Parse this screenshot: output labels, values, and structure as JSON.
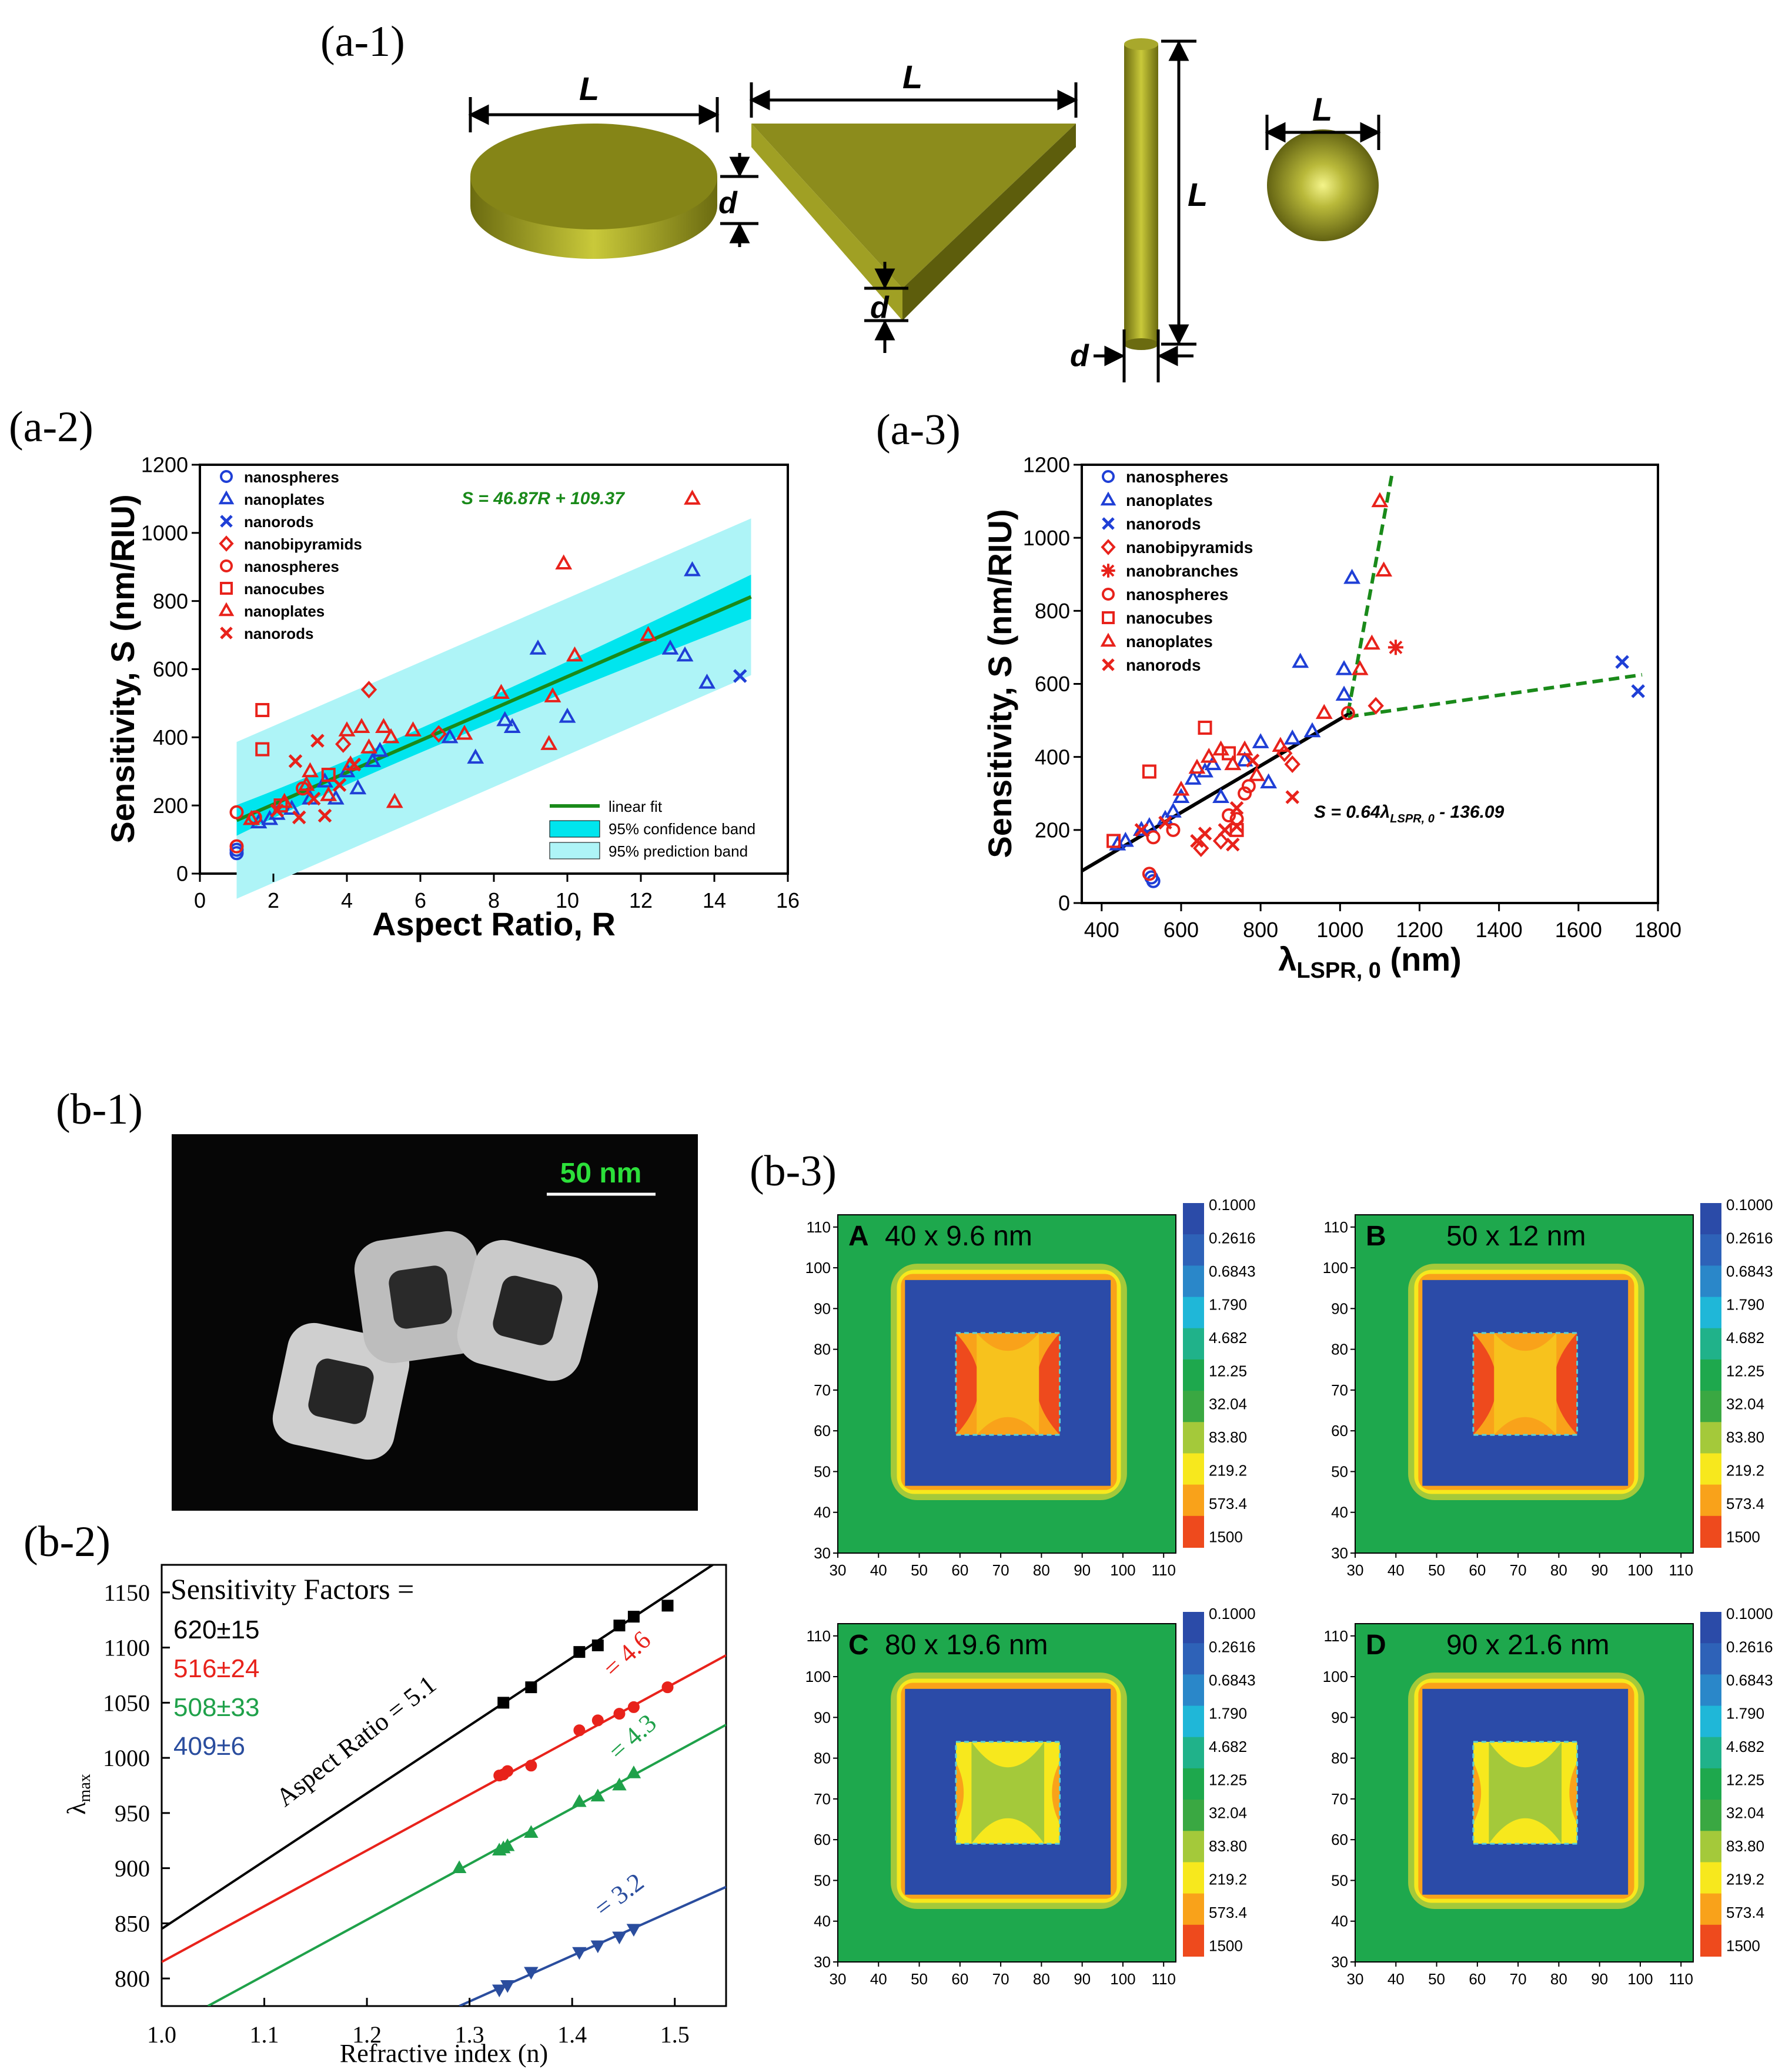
{
  "figure": {
    "panel_labels": {
      "a1": "(a-1)",
      "a2": "(a-2)",
      "a3": "(a-3)",
      "b1": "(b-1)",
      "b2": "(b-2)",
      "b3": "(b-3)"
    },
    "shapes_legend": {
      "length_label": "L",
      "thickness_label": "d"
    },
    "micrograph": {
      "scale_bar": "50 nm"
    }
  },
  "chart_data": [
    {
      "id": "a2",
      "type": "scatter",
      "xlabel": "Aspect Ratio, R",
      "ylabel": "Sensitivity, S (nm/RIU)",
      "xlim": [
        0,
        16
      ],
      "ylim": [
        0,
        1200
      ],
      "xticks": [
        "0",
        "2",
        "4",
        "6",
        "8",
        "10",
        "12",
        "14",
        "16"
      ],
      "yticks": [
        "0",
        "200",
        "400",
        "600",
        "800",
        "1000",
        "1200"
      ],
      "equation": "S = 46.87R + 109.37",
      "fit": {
        "slope": 46.87,
        "intercept": 109.37,
        "x_range": [
          1,
          15
        ]
      },
      "legend_position": "top-left",
      "band_legend": [
        "linear fit",
        "95% confidence band",
        "95% prediction band"
      ],
      "colors": {
        "blue": "#1f3fd6",
        "red": "#e8221b",
        "fit": "#1a8a1a",
        "conf": "#00e5ee",
        "pred": "#aef4f7"
      },
      "series": [
        {
          "name": "nanospheres",
          "marker": "circle",
          "color": "blue",
          "points": [
            [
              1,
              60
            ],
            [
              1,
              70
            ]
          ]
        },
        {
          "name": "nanoplates",
          "marker": "triangle",
          "color": "blue",
          "points": [
            [
              1.6,
              150
            ],
            [
              1.9,
              160
            ],
            [
              2.1,
              175
            ],
            [
              2.5,
              190
            ],
            [
              3.0,
              220
            ],
            [
              3.4,
              270
            ],
            [
              3.7,
              220
            ],
            [
              4.0,
              300
            ],
            [
              4.3,
              250
            ],
            [
              4.7,
              330
            ],
            [
              4.9,
              360
            ],
            [
              6.8,
              400
            ],
            [
              7.5,
              340
            ],
            [
              8.3,
              450
            ],
            [
              8.5,
              430
            ],
            [
              9.2,
              660
            ],
            [
              10.0,
              460
            ],
            [
              12.8,
              660
            ],
            [
              13.2,
              640
            ],
            [
              13.4,
              890
            ],
            [
              13.8,
              560
            ]
          ]
        },
        {
          "name": "nanorods",
          "marker": "x",
          "color": "blue",
          "points": [
            [
              14.7,
              580
            ]
          ]
        },
        {
          "name": "nanobipyramids",
          "marker": "diamond",
          "color": "red",
          "points": [
            [
              3.9,
              380
            ],
            [
              4.6,
              540
            ],
            [
              6.5,
              410
            ]
          ]
        },
        {
          "name": "nanospheres",
          "marker": "circle",
          "color": "red",
          "points": [
            [
              1,
              180
            ],
            [
              1,
              80
            ],
            [
              1.5,
              165
            ],
            [
              2.8,
              250
            ]
          ]
        },
        {
          "name": "nanocubes",
          "marker": "square",
          "color": "red",
          "points": [
            [
              1.7,
              480
            ],
            [
              1.7,
              365
            ],
            [
              2.2,
              200
            ],
            [
              3.5,
              290
            ]
          ]
        },
        {
          "name": "nanoplates",
          "marker": "triangle",
          "color": "red",
          "points": [
            [
              1.4,
              160
            ],
            [
              2.3,
              210
            ],
            [
              2.9,
              260
            ],
            [
              3.0,
              300
            ],
            [
              3.5,
              230
            ],
            [
              4.0,
              420
            ],
            [
              4.1,
              320
            ],
            [
              4.4,
              430
            ],
            [
              4.6,
              370
            ],
            [
              5.0,
              430
            ],
            [
              5.2,
              400
            ],
            [
              5.3,
              210
            ],
            [
              5.8,
              420
            ],
            [
              7.2,
              410
            ],
            [
              8.2,
              530
            ],
            [
              9.5,
              380
            ],
            [
              9.6,
              520
            ],
            [
              9.9,
              910
            ],
            [
              10.2,
              640
            ],
            [
              12.2,
              700
            ],
            [
              13.4,
              1100
            ]
          ]
        },
        {
          "name": "nanorods",
          "marker": "x",
          "color": "red",
          "points": [
            [
              2.1,
              185
            ],
            [
              2.6,
              330
            ],
            [
              2.7,
              165
            ],
            [
              3.1,
              220
            ],
            [
              3.2,
              390
            ],
            [
              3.4,
              170
            ],
            [
              3.8,
              260
            ],
            [
              4.2,
              320
            ]
          ]
        }
      ]
    },
    {
      "id": "a3",
      "type": "scatter",
      "xlabel": "λLSPR, 0 (nm)",
      "ylabel": "Sensitivity, S (nm/RIU)",
      "xlim": [
        350,
        1800
      ],
      "ylim": [
        0,
        1200
      ],
      "xticks": [
        "400",
        "600",
        "800",
        "1000",
        "1200",
        "1400",
        "1600",
        "1800"
      ],
      "yticks": [
        "0",
        "200",
        "400",
        "600",
        "800",
        "1000",
        "1200"
      ],
      "equation": "S = 0.64λLSPR, 0 - 136.09",
      "legend_position": "top-left",
      "fit_black": {
        "slope": 0.64,
        "intercept": -136.09,
        "x_range": [
          350,
          1030
        ]
      },
      "fit_green_1": [
        [
          1020,
          520
        ],
        [
          1130,
          1170
        ]
      ],
      "fit_green_2": [
        [
          1020,
          510
        ],
        [
          1760,
          625
        ]
      ],
      "colors": {
        "blue": "#1f3fd6",
        "red": "#e8221b",
        "black": "#000000",
        "green": "#1a8a1a"
      },
      "series": [
        {
          "name": "nanospheres",
          "marker": "circle",
          "color": "blue",
          "points": [
            [
              525,
              70
            ],
            [
              530,
              60
            ]
          ]
        },
        {
          "name": "nanoplates",
          "marker": "triangle",
          "color": "blue",
          "points": [
            [
              440,
              160
            ],
            [
              460,
              170
            ],
            [
              500,
              200
            ],
            [
              520,
              210
            ],
            [
              560,
              230
            ],
            [
              580,
              250
            ],
            [
              600,
              290
            ],
            [
              630,
              340
            ],
            [
              660,
              360
            ],
            [
              680,
              380
            ],
            [
              700,
              290
            ],
            [
              760,
              390
            ],
            [
              800,
              440
            ],
            [
              820,
              330
            ],
            [
              880,
              450
            ],
            [
              900,
              660
            ],
            [
              930,
              470
            ],
            [
              1010,
              570
            ],
            [
              1010,
              640
            ],
            [
              1030,
              890
            ]
          ]
        },
        {
          "name": "nanorods",
          "marker": "x",
          "color": "blue",
          "points": [
            [
              1710,
              660
            ],
            [
              1750,
              580
            ]
          ]
        },
        {
          "name": "nanobipyramids",
          "marker": "diamond",
          "color": "red",
          "points": [
            [
              650,
              150
            ],
            [
              700,
              170
            ],
            [
              860,
              410
            ],
            [
              880,
              380
            ],
            [
              1090,
              540
            ]
          ]
        },
        {
          "name": "nanobranches",
          "marker": "asterisk",
          "color": "red",
          "points": [
            [
              1140,
              700
            ]
          ]
        },
        {
          "name": "nanospheres",
          "marker": "circle",
          "color": "red",
          "points": [
            [
              520,
              80
            ],
            [
              530,
              180
            ],
            [
              580,
              200
            ],
            [
              720,
              240
            ],
            [
              740,
              230
            ],
            [
              760,
              300
            ],
            [
              770,
              320
            ],
            [
              1020,
              520
            ]
          ]
        },
        {
          "name": "nanocubes",
          "marker": "square",
          "color": "red",
          "points": [
            [
              430,
              170
            ],
            [
              520,
              360
            ],
            [
              660,
              480
            ],
            [
              720,
              410
            ],
            [
              740,
              200
            ]
          ]
        },
        {
          "name": "nanoplates",
          "marker": "triangle",
          "color": "red",
          "points": [
            [
              600,
              310
            ],
            [
              640,
              370
            ],
            [
              670,
              400
            ],
            [
              700,
              420
            ],
            [
              730,
              380
            ],
            [
              760,
              420
            ],
            [
              790,
              350
            ],
            [
              850,
              430
            ],
            [
              960,
              520
            ],
            [
              1050,
              640
            ],
            [
              1080,
              710
            ],
            [
              1100,
              1100
            ],
            [
              1110,
              910
            ]
          ]
        },
        {
          "name": "nanorods",
          "marker": "x",
          "color": "red",
          "points": [
            [
              500,
              200
            ],
            [
              560,
              220
            ],
            [
              640,
              170
            ],
            [
              660,
              190
            ],
            [
              710,
              200
            ],
            [
              730,
              160
            ],
            [
              740,
              260
            ],
            [
              740,
              210
            ],
            [
              780,
              390
            ],
            [
              880,
              290
            ]
          ]
        }
      ]
    },
    {
      "id": "b2",
      "type": "line",
      "xlabel": "Refractive index (n)",
      "ylabel": "λmax",
      "xlim": [
        1.0,
        1.55
      ],
      "ylim": [
        775,
        1175
      ],
      "xticks": [
        "1.0",
        "1.1",
        "1.2",
        "1.3",
        "1.4",
        "1.5"
      ],
      "yticks": [
        "800",
        "850",
        "900",
        "950",
        "1000",
        "1050",
        "1100",
        "1150"
      ],
      "title_text": "Sensitivity Factors =",
      "series": [
        {
          "name": "Aspect Ratio = 5.1",
          "factor": "620±15",
          "color": "#000000",
          "marker": "square",
          "line": [
            [
              1.0,
              845
            ],
            [
              1.55,
              1183
            ]
          ],
          "points": [
            [
              1.333,
              1050
            ],
            [
              1.36,
              1064
            ],
            [
              1.407,
              1096
            ],
            [
              1.425,
              1102
            ],
            [
              1.446,
              1120
            ],
            [
              1.46,
              1128
            ],
            [
              1.493,
              1138
            ]
          ]
        },
        {
          "name": "= 4.6",
          "factor": "516±24",
          "color": "#e8221b",
          "marker": "circle",
          "line": [
            [
              1.0,
              815
            ],
            [
              1.55,
              1093
            ]
          ],
          "points": [
            [
              1.329,
              984
            ],
            [
              1.333,
              985
            ],
            [
              1.337,
              988
            ],
            [
              1.36,
              993
            ],
            [
              1.407,
              1025
            ],
            [
              1.425,
              1034
            ],
            [
              1.446,
              1040
            ],
            [
              1.46,
              1046
            ],
            [
              1.493,
              1064
            ]
          ]
        },
        {
          "name": "= 4.3",
          "factor": "508±33",
          "color": "#1fa14a",
          "marker": "triangle",
          "line": [
            [
              1.045,
              775
            ],
            [
              1.55,
              1030
            ]
          ],
          "points": [
            [
              1.29,
              900
            ],
            [
              1.329,
              916
            ],
            [
              1.333,
              918
            ],
            [
              1.337,
              920
            ],
            [
              1.36,
              932
            ],
            [
              1.407,
              960
            ],
            [
              1.425,
              965
            ],
            [
              1.446,
              975
            ],
            [
              1.46,
              986
            ]
          ]
        },
        {
          "name": "= 3.2",
          "factor": "409±6",
          "color": "#2a4d9e",
          "marker": "triangle-down",
          "line": [
            [
              1.29,
              775
            ],
            [
              1.55,
              883
            ]
          ],
          "points": [
            [
              1.329,
              790
            ],
            [
              1.337,
              794
            ],
            [
              1.36,
              806
            ],
            [
              1.407,
              824
            ],
            [
              1.425,
              830
            ],
            [
              1.446,
              838
            ],
            [
              1.46,
              845
            ]
          ]
        }
      ]
    },
    {
      "id": "b3",
      "type": "heatmap",
      "xticks": [
        "30",
        "40",
        "50",
        "60",
        "70",
        "80",
        "90",
        "100",
        "110"
      ],
      "yticks": [
        "30",
        "40",
        "50",
        "60",
        "70",
        "80",
        "90",
        "100",
        "110"
      ],
      "colorbar": [
        "0.1000",
        "0.2616",
        "0.6843",
        "1.790",
        "4.682",
        "12.25",
        "32.04",
        "83.80",
        "219.2",
        "573.4",
        "1500"
      ],
      "colorbar_colors": [
        "#2b4ba8",
        "#2e62b8",
        "#2a87c9",
        "#1fb7d8",
        "#20b28a",
        "#1ea84d",
        "#3aa842",
        "#a4c93a",
        "#f7e81d",
        "#f9a21a",
        "#ee4a1d"
      ],
      "maps": [
        {
          "label": "A",
          "title": "40 x 9.6 nm",
          "inner": "orange"
        },
        {
          "label": "B",
          "title": "50 x 12 nm",
          "inner": "orange"
        },
        {
          "label": "C",
          "title": "80 x 19.6 nm",
          "inner": "green"
        },
        {
          "label": "D",
          "title": "90 x 21.6 nm",
          "inner": "green"
        }
      ]
    }
  ]
}
